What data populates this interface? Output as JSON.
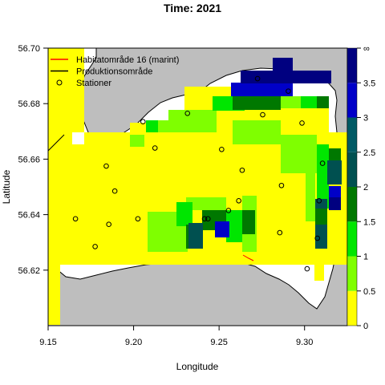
{
  "chart_data": {
    "type": "heatmap",
    "title": "Time: 2021",
    "xlabel": "Longitude",
    "ylabel": "Latitude",
    "xlim": [
      9.15,
      9.325
    ],
    "ylim": [
      56.6,
      56.7
    ],
    "x_ticks": [
      {
        "value": 9.15,
        "label": "9.15"
      },
      {
        "value": 9.2,
        "label": "9.20"
      },
      {
        "value": 9.25,
        "label": "9.25"
      },
      {
        "value": 9.3,
        "label": "9.30"
      }
    ],
    "y_ticks": [
      {
        "value": 56.62,
        "label": "56.62"
      },
      {
        "value": 56.64,
        "label": "56.64"
      },
      {
        "value": 56.66,
        "label": "56.66"
      },
      {
        "value": 56.68,
        "label": "56.68"
      },
      {
        "value": 56.7,
        "label": "56.70"
      }
    ],
    "legend": {
      "placement": "top-left",
      "items": [
        {
          "label": "Habitatområde 16 (marint)",
          "symbol": "line",
          "color": "#ff0000"
        },
        {
          "label": "Produktionsområde",
          "symbol": "line",
          "color": "#000000"
        },
        {
          "label": "Stationer",
          "symbol": "circle",
          "color": "#000000"
        }
      ]
    },
    "colorbar": {
      "breaks": [
        0,
        0.5,
        1,
        1.5,
        2,
        2.5,
        3,
        3.5,
        "∞"
      ],
      "labels": [
        "0",
        "0.5",
        "1",
        "1.5",
        "2",
        "2.5",
        "3",
        "3.5",
        "∞"
      ],
      "colors": [
        "#ffff00",
        "#7fff00",
        "#00e600",
        "#007800",
        "#005050",
        "#005a64",
        "#0000c8",
        "#000080"
      ]
    },
    "stations": [
      {
        "x": 9.166,
        "y": 56.6385
      },
      {
        "x": 9.1775,
        "y": 56.6285
      },
      {
        "x": 9.184,
        "y": 56.6575
      },
      {
        "x": 9.1855,
        "y": 56.6365
      },
      {
        "x": 9.189,
        "y": 56.6485
      },
      {
        "x": 9.2025,
        "y": 56.6385
      },
      {
        "x": 9.2055,
        "y": 56.6735
      },
      {
        "x": 9.2125,
        "y": 56.664
      },
      {
        "x": 9.2315,
        "y": 56.6765
      },
      {
        "x": 9.2415,
        "y": 56.6385
      },
      {
        "x": 9.2435,
        "y": 56.6385
      },
      {
        "x": 9.2515,
        "y": 56.6635
      },
      {
        "x": 9.2555,
        "y": 56.6415
      },
      {
        "x": 9.2615,
        "y": 56.645
      },
      {
        "x": 9.2635,
        "y": 56.656
      },
      {
        "x": 9.2725,
        "y": 56.689
      },
      {
        "x": 9.2755,
        "y": 56.676
      },
      {
        "x": 9.2855,
        "y": 56.6335
      },
      {
        "x": 9.2865,
        "y": 56.6505
      },
      {
        "x": 9.2905,
        "y": 56.6845
      },
      {
        "x": 9.2985,
        "y": 56.673
      },
      {
        "x": 9.3015,
        "y": 56.6205
      },
      {
        "x": 9.3075,
        "y": 56.6315
      },
      {
        "x": 9.3085,
        "y": 56.645
      },
      {
        "x": 9.3105,
        "y": 56.6585
      }
    ]
  }
}
